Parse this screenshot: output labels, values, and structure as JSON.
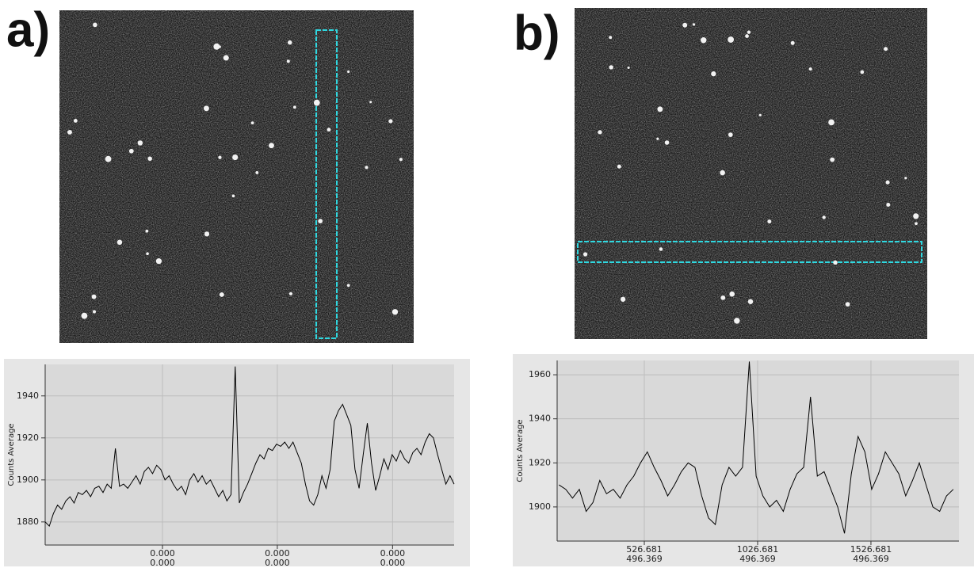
{
  "panel_labels": [
    "a)",
    "b)"
  ],
  "chart_data": [
    {
      "type": "line",
      "ylabel": "Counts Average",
      "color": "#000000",
      "grid": true,
      "values": [
        1880,
        1878,
        1884,
        1888,
        1886,
        1890,
        1892,
        1889,
        1894,
        1893,
        1895,
        1892,
        1896,
        1897,
        1894,
        1898,
        1896,
        1915,
        1897,
        1898,
        1896,
        1899,
        1902,
        1898,
        1904,
        1906,
        1903,
        1907,
        1905,
        1900,
        1902,
        1898,
        1895,
        1897,
        1893,
        1900,
        1903,
        1899,
        1902,
        1898,
        1900,
        1896,
        1892,
        1895,
        1890,
        1893,
        1954,
        1889,
        1894,
        1898,
        1903,
        1908,
        1912,
        1910,
        1915,
        1914,
        1917,
        1916,
        1918,
        1915,
        1918,
        1913,
        1908,
        1898,
        1890,
        1888,
        1893,
        1902,
        1896,
        1905,
        1928,
        1933,
        1936,
        1931,
        1926,
        1905,
        1896,
        1912,
        1927,
        1908,
        1895,
        1902,
        1910,
        1905,
        1912,
        1909,
        1914,
        1910,
        1908,
        1913,
        1915,
        1912,
        1918,
        1922,
        1920,
        1912,
        1905,
        1898,
        1902,
        1898
      ],
      "xlim": [
        0,
        99
      ],
      "ylim": [
        1869,
        1955
      ],
      "yticks": [
        1880,
        1900,
        1920,
        1940
      ],
      "xticks": [
        {
          "value": 28.4,
          "label": [
            "0.000",
            "0.000"
          ]
        },
        {
          "value": 56.2,
          "label": [
            "0.000",
            "0.000"
          ]
        },
        {
          "value": 84.1,
          "label": [
            "0.000",
            "0.000"
          ]
        }
      ]
    },
    {
      "type": "line",
      "ylabel": "Counts Average",
      "color": "#000000",
      "grid": true,
      "x": [
        150,
        180,
        210,
        240,
        270,
        300,
        330,
        360,
        390,
        420,
        450,
        480,
        510,
        540,
        570,
        600,
        630,
        660,
        690,
        720,
        750,
        780,
        810,
        840,
        870,
        900,
        930,
        960,
        990,
        1020,
        1050,
        1080,
        1110,
        1140,
        1170,
        1200,
        1230,
        1260,
        1290,
        1320,
        1350,
        1380,
        1410,
        1440,
        1470,
        1500,
        1530,
        1560,
        1590,
        1620,
        1650,
        1680,
        1710,
        1740,
        1770,
        1800,
        1830,
        1860,
        1890
      ],
      "values": [
        1910,
        1908,
        1904,
        1908,
        1898,
        1902,
        1912,
        1906,
        1908,
        1904,
        1910,
        1914,
        1920,
        1925,
        1918,
        1912,
        1905,
        1910,
        1916,
        1920,
        1918,
        1905,
        1895,
        1892,
        1910,
        1918,
        1914,
        1918,
        1966,
        1914,
        1905,
        1900,
        1903,
        1898,
        1908,
        1915,
        1918,
        1950,
        1914,
        1916,
        1908,
        1900,
        1888,
        1915,
        1932,
        1925,
        1908,
        1915,
        1925,
        1920,
        1915,
        1905,
        1912,
        1920,
        1910,
        1900,
        1898,
        1905,
        1908
      ],
      "xlim": [
        142,
        1915
      ],
      "ylim": [
        1884.5,
        1966.5
      ],
      "yticks": [
        1900,
        1920,
        1940,
        1960
      ],
      "xticks": [
        {
          "value": 526.681,
          "label": [
            "526.681",
            "496.369"
          ]
        },
        {
          "value": 1026.681,
          "label": [
            "1026.681",
            "496.369"
          ]
        },
        {
          "value": 1526.681,
          "label": [
            "1526.681",
            "496.369"
          ]
        }
      ]
    }
  ]
}
